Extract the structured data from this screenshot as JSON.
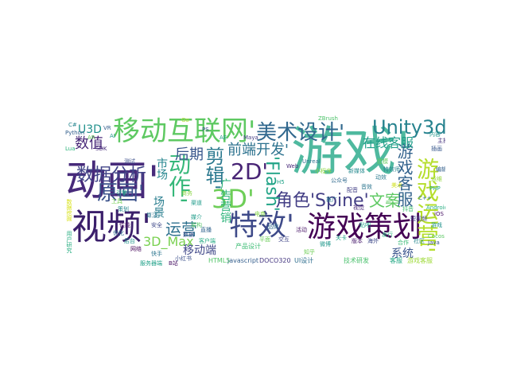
{
  "words": [
    {
      "text": "游戏'",
      "color": "#4fb99f"
    },
    {
      "text": "动画'",
      "color": "#472a7a"
    },
    {
      "text": "视频'",
      "color": "#3b1f6b"
    },
    {
      "text": "移动互联网'",
      "color": "#5ec962"
    },
    {
      "text": "特效'",
      "color": "#3e4a89"
    },
    {
      "text": "游戏策划",
      "color": "#440154"
    },
    {
      "text": "美术设计'",
      "color": "#31688e"
    },
    {
      "text": "Unity3d'",
      "color": "#26828e"
    },
    {
      "text": "游戏运营'",
      "color": "#b5de2b"
    },
    {
      "text": "3D'",
      "color": "#6ece58"
    },
    {
      "text": "2D'",
      "color": "#482475"
    },
    {
      "text": "动作'",
      "color": "#35b779"
    },
    {
      "text": "原画'",
      "color": "#3b528b"
    },
    {
      "text": "数据分析",
      "color": "#414487"
    },
    {
      "text": "前端开发'",
      "color": "#2c728e"
    },
    {
      "text": "角色'Spine'",
      "color": "#433e85"
    },
    {
      "text": "文案'",
      "color": "#5ec962"
    },
    {
      "text": "游戏客服",
      "color": "#33638d"
    },
    {
      "text": "'Flash'",
      "color": "#20a386"
    },
    {
      "text": "剪辑'",
      "color": "#2a788e"
    },
    {
      "text": "运营",
      "color": "#2d708e"
    },
    {
      "text": "数值",
      "color": "#482878"
    },
    {
      "text": "后期",
      "color": "#39568c"
    },
    {
      "text": "在线客服",
      "color": "#1f9e89"
    },
    {
      "text": "3D_Max",
      "color": "#7ad151"
    },
    {
      "text": "移动端",
      "color": "#3f4788"
    },
    {
      "text": "U3D",
      "color": "#21918c"
    },
    {
      "text": "场景",
      "color": "#287d8e"
    },
    {
      "text": "市场",
      "color": "#25858e"
    },
    {
      "text": "系统",
      "color": "#3a548c"
    },
    {
      "text": "广告营销",
      "color": "#2fb47c"
    },
    {
      "text": "DOCO320",
      "color": "#453781"
    },
    {
      "text": "javascript",
      "color": "#355f8d"
    },
    {
      "text": "HTML5",
      "color": "#52c569"
    },
    {
      "text": "游戏客服",
      "color": "#9fda3a"
    },
    {
      "text": "客服",
      "color": "#22a884"
    },
    {
      "text": "产品设计",
      "color": "#3dbc74"
    },
    {
      "text": "UI设计",
      "color": "#2e6e8e"
    },
    {
      "text": "技术研发",
      "color": "#4ac16d"
    },
    {
      "text": "用户研究",
      "color": "#27ad81"
    },
    {
      "text": "数据挖掘",
      "color": "#d8e219"
    },
    {
      "text": "服务器端",
      "color": "#1fa088"
    },
    {
      "text": "测试",
      "color": "#3c4f8a"
    },
    {
      "text": "策划",
      "color": "#24878e"
    },
    {
      "text": "商务",
      "color": "#8bd646"
    },
    {
      "text": "渠道",
      "color": "#1e9b8a"
    },
    {
      "text": "直播",
      "color": "#32648e"
    },
    {
      "text": "平面",
      "color": "#6ccd5a"
    },
    {
      "text": "交互",
      "color": "#404688"
    },
    {
      "text": "推广",
      "color": "#2a778e"
    },
    {
      "text": "视觉",
      "color": "#482677"
    },
    {
      "text": "游戏",
      "color": "#20928c"
    },
    {
      "text": "Cocos",
      "color": "#5cc863"
    },
    {
      "text": "Java",
      "color": "#3b528b"
    },
    {
      "text": "C++",
      "color": "#2c718e"
    },
    {
      "text": "Android",
      "color": "#26ad81"
    },
    {
      "text": "iOS",
      "color": "#471164"
    },
    {
      "text": "PHP",
      "color": "#21a685"
    },
    {
      "text": "运维",
      "color": "#95d840"
    },
    {
      "text": "编辑",
      "color": "#34618d"
    },
    {
      "text": "内容",
      "color": "#1f958b"
    },
    {
      "text": "主播",
      "color": "#46337e"
    },
    {
      "text": "插画",
      "color": "#38588c"
    },
    {
      "text": "建模",
      "color": "#63cb5f"
    },
    {
      "text": "特效师",
      "color": "#25838e"
    },
    {
      "text": "动效",
      "color": "#297a8e"
    },
    {
      "text": "美术",
      "color": "#d0e11c"
    },
    {
      "text": "音效",
      "color": "#2b748e"
    },
    {
      "text": "配音",
      "color": "#423f85"
    },
    {
      "text": "关卡",
      "color": "#1fa187"
    },
    {
      "text": "版本",
      "color": "#481b6d"
    },
    {
      "text": "海外",
      "color": "#3e4989"
    },
    {
      "text": "发行",
      "color": "#2ab07f"
    },
    {
      "text": "合作",
      "color": "#3aba76"
    },
    {
      "text": "社区",
      "color": "#24868e"
    },
    {
      "text": "电商",
      "color": "#85d54a"
    },
    {
      "text": "品牌",
      "color": "#2f6b8e"
    },
    {
      "text": "活动",
      "color": "#481467"
    },
    {
      "text": "媒介",
      "color": "#1e9c89"
    },
    {
      "text": "数据",
      "color": "#3b518b"
    },
    {
      "text": "客户端",
      "color": "#24aa83"
    },
    {
      "text": "架构",
      "color": "#56c667"
    },
    {
      "text": "算法",
      "color": "#2b758e"
    },
    {
      "text": "安全",
      "color": "#3f4889"
    },
    {
      "text": "引擎",
      "color": "#22a785"
    },
    {
      "text": "工具",
      "color": "#75d054"
    },
    {
      "text": "性能",
      "color": "#471365"
    },
    {
      "text": "优化",
      "color": "#2e6d8e"
    },
    {
      "text": "后台",
      "color": "#20938c"
    },
    {
      "text": "网络",
      "color": "#450559"
    },
    {
      "text": "AR",
      "color": "#67cc5c"
    },
    {
      "text": "VR",
      "color": "#355e8d"
    },
    {
      "text": "AI",
      "color": "#1f998a"
    },
    {
      "text": "SDK",
      "color": "#472c7a"
    },
    {
      "text": "Lua",
      "color": "#2fb47c"
    },
    {
      "text": "Python",
      "color": "#34608d"
    },
    {
      "text": "C#",
      "color": "#25848e"
    },
    {
      "text": "Go",
      "color": "#b2dd2d"
    },
    {
      "text": "PS",
      "color": "#3a538b"
    },
    {
      "text": "AE",
      "color": "#1e9d89"
    },
    {
      "text": "Maya",
      "color": "#433d84"
    },
    {
      "text": "ZBrush",
      "color": "#4ec36b"
    },
    {
      "text": "Unreal",
      "color": "#2d718e"
    },
    {
      "text": "Web",
      "color": "#482979"
    },
    {
      "text": "H5",
      "color": "#1fa287"
    },
    {
      "text": "小程序",
      "color": "#8ed645"
    },
    {
      "text": "公众号",
      "color": "#306a8e"
    },
    {
      "text": "新媒体",
      "color": "#23898e"
    },
    {
      "text": "短视频",
      "color": "#404387"
    },
    {
      "text": "抖音",
      "color": "#42be71"
    },
    {
      "text": "快手",
      "color": "#2b758e"
    },
    {
      "text": "B站",
      "color": "#471063"
    },
    {
      "text": "微博",
      "color": "#1f978b"
    },
    {
      "text": "知乎",
      "color": "#70cf57"
    },
    {
      "text": "小红书",
      "color": "#3c508b"
    },
    {
      "text": "贴吧",
      "color": "#20a486"
    }
  ]
}
